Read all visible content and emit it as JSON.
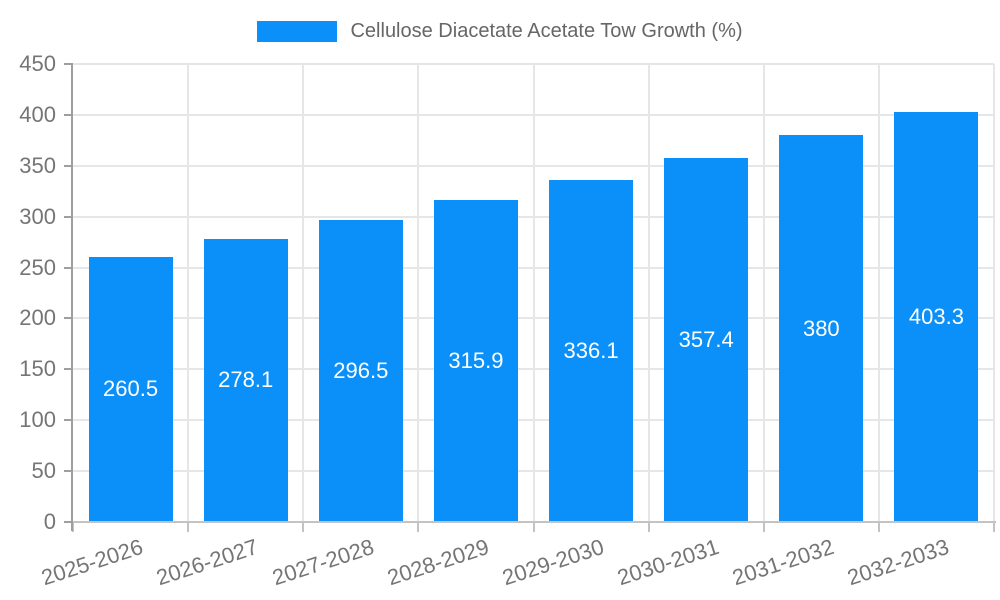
{
  "legend": {
    "label": "Cellulose Diacetate Acetate Tow Growth (%)"
  },
  "colors": {
    "bar": "#0a90f8",
    "value_label": "#ffffff",
    "axis_text": "#757575",
    "legend_text": "#666666",
    "y_axis_line": "#9e9e9e",
    "x_axis_line": "#c3c3c3",
    "gridline": "#e6e6e6"
  },
  "chart_data": {
    "type": "bar",
    "title": "Cellulose Diacetate Acetate Tow Growth (%)",
    "categories": [
      "2025-2026",
      "2026-2027",
      "2027-2028",
      "2028-2029",
      "2029-2030",
      "2030-2031",
      "2031-2032",
      "2032-2033"
    ],
    "values": [
      260.5,
      278.1,
      296.5,
      315.9,
      336.1,
      357.4,
      380,
      403.3
    ],
    "xlabel": "",
    "ylabel": "",
    "ylim": [
      0,
      450
    ],
    "yticks": [
      0,
      50,
      100,
      150,
      200,
      250,
      300,
      350,
      400,
      450
    ],
    "grid": true,
    "legend_position": "top",
    "xtick_rotation_deg": -18,
    "value_labels_inside_bars": true
  }
}
